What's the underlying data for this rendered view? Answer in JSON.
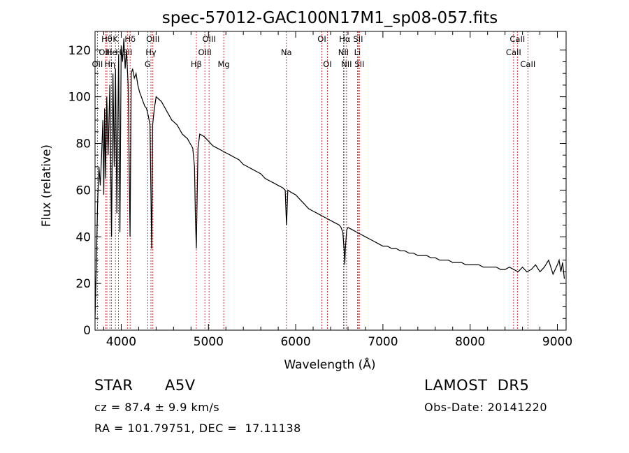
{
  "chart_data": {
    "type": "line",
    "title": "spec-57012-GAC100N17M1_sp08-057.fits",
    "xlabel": "Wavelength (Å)",
    "ylabel": "Flux (relative)",
    "xlim": [
      3700,
      9100
    ],
    "ylim": [
      0,
      128
    ],
    "xticks": [
      4000,
      5000,
      6000,
      7000,
      8000,
      9000
    ],
    "yticks": [
      0,
      20,
      40,
      60,
      80,
      100,
      120
    ],
    "grid": false,
    "line_color": "#000000",
    "marker_color": "#cc2222",
    "series": [
      {
        "x": [
          3700,
          3715,
          3730,
          3745,
          3760,
          3775,
          3790,
          3800,
          3810,
          3820,
          3835,
          3850,
          3870,
          3889,
          3905,
          3920,
          3935,
          3950,
          3970,
          3985,
          4000,
          4015,
          4030,
          4045,
          4060,
          4080,
          4101,
          4115,
          4130,
          4150,
          4170,
          4190,
          4210,
          4230,
          4250,
          4270,
          4290,
          4310,
          4330,
          4340,
          4350,
          4360,
          4380,
          4400,
          4430,
          4460,
          4490,
          4520,
          4550,
          4580,
          4610,
          4640,
          4670,
          4700,
          4730,
          4760,
          4790,
          4820,
          4840,
          4850,
          4861,
          4870,
          4880,
          4900,
          4950,
          5000,
          5050,
          5100,
          5150,
          5200,
          5250,
          5300,
          5350,
          5400,
          5450,
          5500,
          5550,
          5600,
          5650,
          5700,
          5750,
          5800,
          5850,
          5880,
          5890,
          5895,
          5900,
          5910,
          5950,
          6000,
          6050,
          6100,
          6150,
          6200,
          6250,
          6300,
          6350,
          6400,
          6450,
          6500,
          6520,
          6540,
          6555,
          6563,
          6570,
          6585,
          6600,
          6650,
          6700,
          6750,
          6800,
          6850,
          6900,
          6950,
          7000,
          7050,
          7100,
          7150,
          7200,
          7250,
          7300,
          7350,
          7400,
          7450,
          7500,
          7550,
          7600,
          7650,
          7700,
          7750,
          7800,
          7850,
          7900,
          7950,
          8000,
          8050,
          8100,
          8150,
          8200,
          8250,
          8300,
          8350,
          8400,
          8450,
          8500,
          8550,
          8600,
          8650,
          8700,
          8750,
          8800,
          8850,
          8900,
          8950,
          9000,
          9020,
          9040,
          9060,
          9080
        ],
        "y": [
          5,
          30,
          55,
          70,
          62,
          75,
          90,
          58,
          95,
          65,
          100,
          75,
          105,
          40,
          110,
          70,
          112,
          50,
          118,
          42,
          122,
          115,
          125,
          112,
          120,
          105,
          40,
          110,
          112,
          108,
          110,
          105,
          102,
          100,
          98,
          96,
          95,
          92,
          88,
          60,
          35,
          88,
          95,
          100,
          99,
          98,
          96,
          94,
          92,
          90,
          89,
          88,
          86,
          84,
          83,
          82,
          80,
          78,
          70,
          50,
          35,
          55,
          78,
          84,
          83,
          81,
          79,
          78,
          77,
          76,
          75,
          74,
          73,
          71,
          70,
          69,
          68,
          67,
          65,
          64,
          63,
          62,
          61,
          60,
          50,
          45,
          50,
          60,
          59,
          58,
          56,
          54,
          52,
          51,
          50,
          49,
          48,
          47,
          46,
          45,
          44,
          42,
          35,
          28,
          35,
          43,
          44,
          43,
          42,
          41,
          40,
          39,
          38,
          37,
          36,
          36,
          35,
          35,
          34,
          34,
          33,
          33,
          32,
          32,
          32,
          31,
          31,
          30,
          30,
          30,
          29,
          29,
          29,
          28,
          28,
          28,
          28,
          27,
          27,
          27,
          27,
          26,
          26,
          27,
          26,
          25,
          27,
          25,
          26,
          28,
          25,
          27,
          30,
          24,
          28,
          30,
          25,
          29,
          22
        ]
      }
    ],
    "lines": [
      {
        "wave": 3727,
        "tier": 3,
        "label": "OII"
      },
      {
        "wave": 3820,
        "tier": 2,
        "label": "OIII"
      },
      {
        "wave": 3836,
        "tier": 1,
        "label": "Hθ"
      },
      {
        "wave": 3870,
        "tier": 3,
        "label": "Hη"
      },
      {
        "wave": 3889,
        "tier": 2,
        "label": "He"
      },
      {
        "wave": 3934,
        "tier": 1,
        "label": "K"
      },
      {
        "wave": 3969,
        "tier": 2,
        "label": "H"
      },
      {
        "wave": 4071,
        "tier": 2,
        "label": "SII"
      },
      {
        "wave": 4102,
        "tier": 1,
        "label": "Hδ"
      },
      {
        "wave": 4304,
        "tier": 3,
        "label": "G"
      },
      {
        "wave": 4341,
        "tier": 2,
        "label": "Hγ"
      },
      {
        "wave": 4363,
        "tier": 1,
        "label": "OIII"
      },
      {
        "wave": 4861,
        "tier": 3,
        "label": "Hβ"
      },
      {
        "wave": 4959,
        "tier": 2,
        "label": "OIII"
      },
      {
        "wave": 5007,
        "tier": 1,
        "label": "OIII"
      },
      {
        "wave": 5175,
        "tier": 3,
        "label": "Mg"
      },
      {
        "wave": 5893,
        "tier": 2,
        "label": "Na"
      },
      {
        "wave": 6300,
        "tier": 1,
        "label": "OI"
      },
      {
        "wave": 6364,
        "tier": 3,
        "label": "OI"
      },
      {
        "wave": 6548,
        "tier": 2,
        "label": "NII"
      },
      {
        "wave": 6563,
        "tier": 1,
        "label": "Hα"
      },
      {
        "wave": 6583,
        "tier": 3,
        "label": "NII"
      },
      {
        "wave": 6708,
        "tier": 2,
        "label": "Li"
      },
      {
        "wave": 6716,
        "tier": 1,
        "label": "SII"
      },
      {
        "wave": 6731,
        "tier": 3,
        "label": "SII"
      },
      {
        "wave": 8498,
        "tier": 2,
        "label": "CaII"
      },
      {
        "wave": 8542,
        "tier": 1,
        "label": "CaII"
      },
      {
        "wave": 8662,
        "tier": 3,
        "label": "CaII"
      }
    ]
  },
  "info": {
    "object_type": "STAR",
    "subclass": "A5V",
    "survey": "LAMOST  DR5",
    "cz": "cz = 87.4 ± 9.9 km/s",
    "obs_date": "Obs-Date: 20141220",
    "coords": "RA = 101.79751, DEC =  17.11138"
  }
}
